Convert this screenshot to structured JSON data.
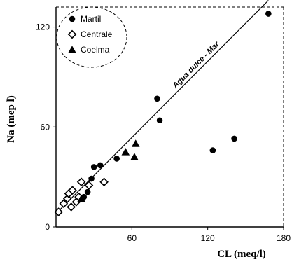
{
  "chart_data": {
    "type": "scatter",
    "title": "",
    "xlabel": "CL  (meq/l)",
    "ylabel": "Na (mep l)",
    "xlim": [
      0,
      180
    ],
    "ylim": [
      0,
      132
    ],
    "xticks": [
      60,
      120,
      180
    ],
    "yticks": [
      0,
      60,
      120
    ],
    "grid": false,
    "legend_position": "top-left",
    "series": [
      {
        "name": "Martil",
        "marker": "filled-circle",
        "color": "#000000",
        "points": [
          {
            "x": 20,
            "y": 17
          },
          {
            "x": 22,
            "y": 18
          },
          {
            "x": 25,
            "y": 21
          },
          {
            "x": 28,
            "y": 29
          },
          {
            "x": 30,
            "y": 36
          },
          {
            "x": 35,
            "y": 37
          },
          {
            "x": 48,
            "y": 41
          },
          {
            "x": 80,
            "y": 77
          },
          {
            "x": 82,
            "y": 64
          },
          {
            "x": 124,
            "y": 46
          },
          {
            "x": 141,
            "y": 53
          },
          {
            "x": 168,
            "y": 128
          }
        ]
      },
      {
        "name": "Centrale",
        "marker": "open-diamond",
        "color": "#000000",
        "points": [
          {
            "x": 2,
            "y": 9
          },
          {
            "x": 6,
            "y": 14
          },
          {
            "x": 9,
            "y": 17
          },
          {
            "x": 10,
            "y": 20
          },
          {
            "x": 12,
            "y": 12
          },
          {
            "x": 13,
            "y": 22
          },
          {
            "x": 16,
            "y": 15
          },
          {
            "x": 18,
            "y": 18
          },
          {
            "x": 20,
            "y": 27
          },
          {
            "x": 26,
            "y": 25
          },
          {
            "x": 38,
            "y": 27
          }
        ]
      },
      {
        "name": "Coelma",
        "marker": "filled-triangle",
        "color": "#000000",
        "points": [
          {
            "x": 20,
            "y": 17
          },
          {
            "x": 55,
            "y": 45
          },
          {
            "x": 62,
            "y": 42
          },
          {
            "x": 63,
            "y": 50
          }
        ]
      }
    ],
    "reference_line": {
      "label": "Agua dulce - Mar",
      "x": [
        0,
        168
      ],
      "y": [
        8,
        136
      ]
    }
  }
}
